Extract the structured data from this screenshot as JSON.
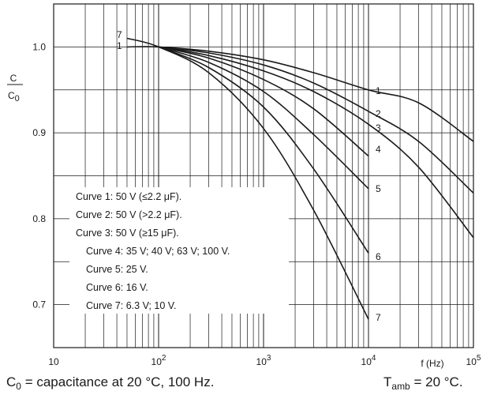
{
  "chart_data": {
    "type": "line",
    "title": "",
    "xlabel": "f (Hz)",
    "ylabel_top": "C",
    "ylabel_bottom": "C",
    "ylabel_bottom_sub": "0",
    "xscale": "log",
    "xlim": [
      10,
      100000
    ],
    "ylim": [
      0.65,
      1.05
    ],
    "grid": true,
    "x_ticks": [
      {
        "value": 10,
        "base": "10",
        "exp": ""
      },
      {
        "value": 100,
        "base": "10",
        "exp": "2"
      },
      {
        "value": 1000,
        "base": "10",
        "exp": "3"
      },
      {
        "value": 10000,
        "base": "10",
        "exp": "4"
      },
      {
        "value": 100000,
        "base": "10",
        "exp": "5"
      }
    ],
    "y_ticks": [
      {
        "value": 0.7,
        "label": "0.7"
      },
      {
        "value": 0.8,
        "label": "0.8"
      },
      {
        "value": 0.9,
        "label": "0.9"
      },
      {
        "value": 1.0,
        "label": "1.0"
      }
    ],
    "series": [
      {
        "name": "1",
        "x": [
          50,
          100,
          300,
          1000,
          3000,
          10000,
          30000,
          100000
        ],
        "y": [
          1.0,
          1.0,
          0.995,
          0.985,
          0.97,
          0.95,
          0.935,
          0.89
        ]
      },
      {
        "name": "2",
        "x": [
          100,
          300,
          1000,
          3000,
          10000,
          30000,
          100000
        ],
        "y": [
          1.0,
          0.993,
          0.979,
          0.958,
          0.925,
          0.89,
          0.83
        ]
      },
      {
        "name": "3",
        "x": [
          100,
          300,
          1000,
          3000,
          10000,
          30000,
          100000
        ],
        "y": [
          1.0,
          0.99,
          0.972,
          0.948,
          0.91,
          0.86,
          0.778
        ]
      },
      {
        "name": "4",
        "x": [
          100,
          300,
          1000,
          3000,
          10000
        ],
        "y": [
          1.0,
          0.987,
          0.962,
          0.928,
          0.873
        ]
      },
      {
        "name": "5",
        "x": [
          100,
          300,
          1000,
          3000,
          10000
        ],
        "y": [
          1.0,
          0.982,
          0.948,
          0.898,
          0.835
        ]
      },
      {
        "name": "6",
        "x": [
          100,
          300,
          1000,
          3000,
          10000
        ],
        "y": [
          1.0,
          0.976,
          0.93,
          0.858,
          0.76
        ]
      },
      {
        "name": "7",
        "x": [
          50,
          100,
          300,
          1000,
          3000,
          10000
        ],
        "y": [
          1.01,
          1.0,
          0.97,
          0.905,
          0.81,
          0.683
        ]
      }
    ],
    "legend": [
      "Curve 1: 50 V (≤2.2 μF).",
      "Curve 2: 50 V (>2.2 μF).",
      "Curve 3: 50 V (≥15 μF).",
      "Curve 4: 35 V; 40 V; 63 V; 100 V.",
      "Curve 5: 25 V.",
      "Curve 6: 16 V.",
      "Curve 7: 6.3 V; 10 V."
    ],
    "legend_placement": "lower-left inside plot"
  },
  "footnotes": {
    "c0_symbol": "C",
    "c0_sub": "0",
    "c0_text": " = capacitance at 20 °C, 100 Hz.",
    "tamb_symbol": "T",
    "tamb_sub": "amb",
    "tamb_text": " = 20 °C."
  }
}
